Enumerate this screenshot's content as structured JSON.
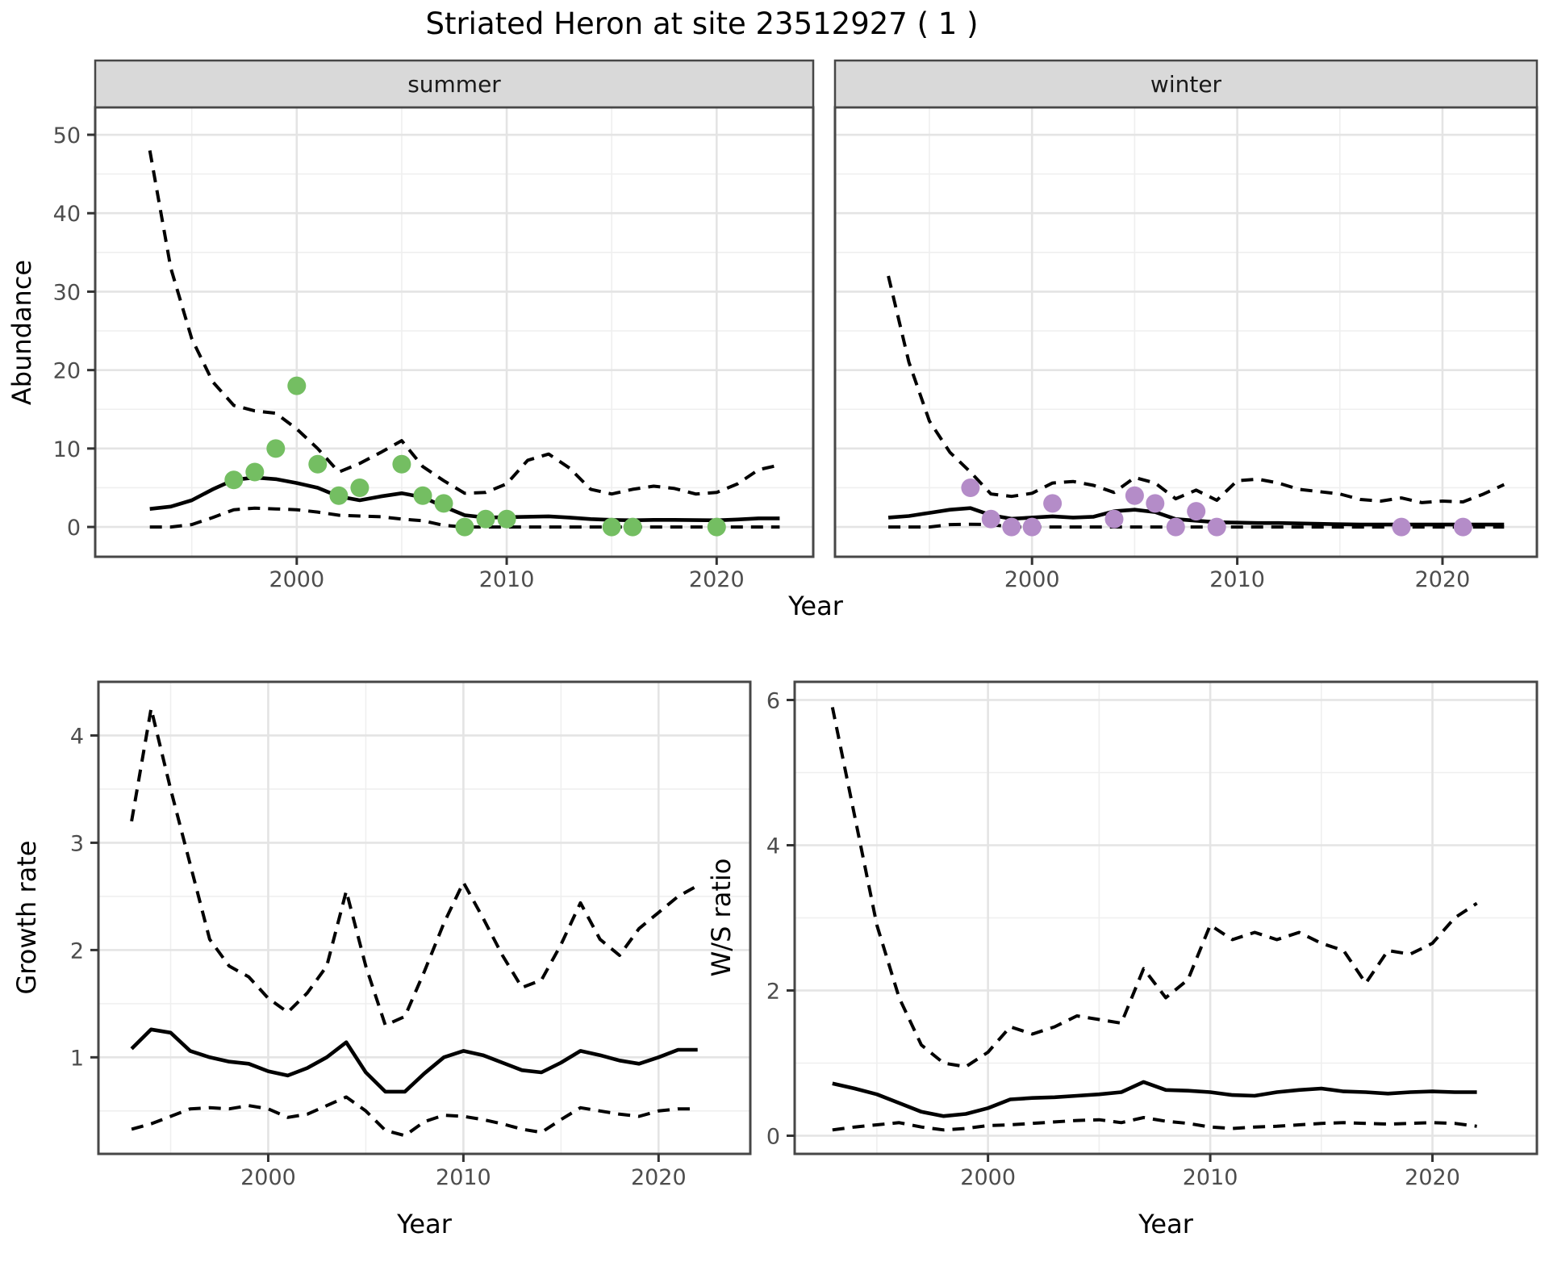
{
  "title": "Striated Heron at site 23512927 ( 1 )",
  "axis_labels": {
    "top_x": "Year",
    "top_y": "Abundance",
    "bottom_left_x": "Year",
    "bottom_left_y": "Growth rate",
    "bottom_right_x": "Year",
    "bottom_right_y": "W/S ratio"
  },
  "colors": {
    "summer_points": "#74BE62",
    "winter_points": "#B48CC8",
    "line": "#000000",
    "grid_major": "#E4E4E4",
    "grid_minor": "#EFEFEF",
    "panel_border": "#474747",
    "strip_bg": "#D9D9D9",
    "tick_text": "#4d4d4d",
    "panel_bg": "#FFFFFF"
  },
  "chart_data": [
    {
      "id": "summer",
      "type": "line",
      "facet_label": "summer",
      "xlabel": "Year",
      "ylabel": "Abundance",
      "x_ticks": [
        2000,
        2010,
        2020
      ],
      "y_ticks": [
        0,
        10,
        20,
        30,
        40,
        50
      ],
      "xlim": [
        1990.4,
        2024.6
      ],
      "ylim": [
        -3.8,
        53.5
      ],
      "years": [
        1993,
        1994,
        1995,
        1996,
        1997,
        1998,
        1999,
        2000,
        2001,
        2002,
        2003,
        2004,
        2005,
        2006,
        2007,
        2008,
        2009,
        2010,
        2011,
        2012,
        2013,
        2014,
        2015,
        2016,
        2017,
        2018,
        2019,
        2020,
        2021,
        2022,
        2023
      ],
      "series": [
        {
          "name": "median",
          "style": "solid",
          "values": [
            2.3,
            2.6,
            3.4,
            4.8,
            6.0,
            6.3,
            6.1,
            5.6,
            5.0,
            3.9,
            3.4,
            3.9,
            4.3,
            3.8,
            2.6,
            1.5,
            1.2,
            1.25,
            1.3,
            1.35,
            1.2,
            1.0,
            0.9,
            0.85,
            0.9,
            0.9,
            0.87,
            0.85,
            0.95,
            1.1,
            1.1
          ]
        },
        {
          "name": "upper 95% CI",
          "style": "dashed",
          "values": [
            48,
            33,
            24,
            18.5,
            15.5,
            14.8,
            14.5,
            12.5,
            10,
            7,
            8.1,
            9.5,
            11,
            7.7,
            5.9,
            4.3,
            4.4,
            5.5,
            8.5,
            9.3,
            7.5,
            4.8,
            4.2,
            4.8,
            5.2,
            4.9,
            4.2,
            4.4,
            5.5,
            7.3,
            7.9
          ]
        },
        {
          "name": "lower 95% CI",
          "style": "dashed",
          "values": [
            0,
            0,
            0.3,
            1.2,
            2.2,
            2.4,
            2.3,
            2.2,
            1.9,
            1.5,
            1.4,
            1.3,
            1.0,
            0.8,
            0.2,
            0,
            0,
            0,
            0,
            0,
            0,
            0,
            0,
            0,
            0,
            0,
            0,
            0,
            0,
            0,
            0
          ]
        }
      ],
      "observations": [
        [
          1997,
          6
        ],
        [
          1998,
          7
        ],
        [
          1999,
          10
        ],
        [
          2000,
          18
        ],
        [
          2001,
          8
        ],
        [
          2002,
          4
        ],
        [
          2003,
          5
        ],
        [
          2005,
          8
        ],
        [
          2006,
          4
        ],
        [
          2007,
          3
        ],
        [
          2008,
          0
        ],
        [
          2009,
          1
        ],
        [
          2010,
          1
        ],
        [
          2015,
          0
        ],
        [
          2016,
          0
        ],
        [
          2020,
          0
        ]
      ],
      "point_color": "#74BE62"
    },
    {
      "id": "winter",
      "type": "line",
      "facet_label": "winter",
      "xlabel": "Year",
      "ylabel": "Abundance",
      "x_ticks": [
        2000,
        2010,
        2020
      ],
      "y_ticks": [
        0,
        10,
        20,
        30,
        40,
        50
      ],
      "xlim": [
        1990.4,
        2024.6
      ],
      "ylim": [
        -3.8,
        53.5
      ],
      "years": [
        1993,
        1994,
        1995,
        1996,
        1997,
        1998,
        1999,
        2000,
        2001,
        2002,
        2003,
        2004,
        2005,
        2006,
        2007,
        2008,
        2009,
        2010,
        2011,
        2012,
        2013,
        2014,
        2015,
        2016,
        2017,
        2018,
        2019,
        2020,
        2021,
        2022,
        2023
      ],
      "series": [
        {
          "name": "median",
          "style": "solid",
          "values": [
            1.2,
            1.4,
            1.8,
            2.2,
            2.4,
            1.5,
            1.05,
            1.2,
            1.35,
            1.2,
            1.3,
            2.0,
            2.2,
            1.9,
            1.0,
            0.8,
            0.6,
            0.55,
            0.5,
            0.5,
            0.45,
            0.4,
            0.35,
            0.3,
            0.3,
            0.3,
            0.3,
            0.3,
            0.3,
            0.3,
            0.3
          ]
        },
        {
          "name": "upper 95% CI",
          "style": "dashed",
          "values": [
            32,
            21,
            13.5,
            9.5,
            7,
            4.2,
            3.9,
            4.3,
            5.6,
            5.8,
            5.3,
            4.4,
            6.3,
            5.6,
            3.6,
            4.7,
            3.4,
            5.9,
            6.1,
            5.6,
            4.8,
            4.5,
            4.2,
            3.5,
            3.3,
            3.7,
            3.1,
            3.3,
            3.2,
            4.2,
            5.4
          ]
        },
        {
          "name": "lower 95% CI",
          "style": "dashed",
          "values": [
            0,
            0,
            0,
            0.3,
            0.35,
            0.3,
            0,
            0,
            0,
            0,
            0,
            0,
            0,
            0,
            0,
            0,
            0,
            0,
            0,
            0,
            0,
            0,
            0,
            0,
            0,
            0,
            0,
            0,
            0,
            0,
            0
          ]
        }
      ],
      "observations": [
        [
          1997,
          5
        ],
        [
          1998,
          1
        ],
        [
          1999,
          0
        ],
        [
          2000,
          0
        ],
        [
          2001,
          3
        ],
        [
          2004,
          1
        ],
        [
          2005,
          4
        ],
        [
          2006,
          3
        ],
        [
          2007,
          0
        ],
        [
          2008,
          2
        ],
        [
          2009,
          0
        ],
        [
          2018,
          0
        ],
        [
          2021,
          0
        ]
      ],
      "point_color": "#B48CC8"
    },
    {
      "id": "growth",
      "type": "line",
      "facet_label": "",
      "xlabel": "Year",
      "ylabel": "Growth rate",
      "x_ticks": [
        2000,
        2010,
        2020
      ],
      "y_ticks": [
        1,
        2,
        3,
        4
      ],
      "xlim": [
        1991.3,
        2024.7
      ],
      "ylim": [
        0.1,
        4.5
      ],
      "years": [
        1993,
        1994,
        1995,
        1996,
        1997,
        1998,
        1999,
        2000,
        2001,
        2002,
        2003,
        2004,
        2005,
        2006,
        2007,
        2008,
        2009,
        2010,
        2011,
        2012,
        2013,
        2014,
        2015,
        2016,
        2017,
        2018,
        2019,
        2020,
        2021,
        2022
      ],
      "series": [
        {
          "name": "median",
          "style": "solid",
          "values": [
            1.08,
            1.26,
            1.23,
            1.06,
            1.0,
            0.96,
            0.94,
            0.87,
            0.83,
            0.9,
            1.0,
            1.14,
            0.86,
            0.68,
            0.68,
            0.85,
            1.0,
            1.06,
            1.02,
            0.95,
            0.88,
            0.86,
            0.95,
            1.06,
            1.02,
            0.97,
            0.94,
            1.0,
            1.07,
            1.07
          ]
        },
        {
          "name": "upper 95% CI",
          "style": "dashed",
          "values": [
            3.2,
            4.25,
            3.5,
            2.8,
            2.1,
            1.85,
            1.75,
            1.55,
            1.42,
            1.6,
            1.85,
            2.55,
            1.85,
            1.3,
            1.38,
            1.8,
            2.25,
            2.63,
            2.3,
            1.95,
            1.65,
            1.72,
            2.05,
            2.44,
            2.1,
            1.95,
            2.2,
            2.35,
            2.5,
            2.6
          ]
        },
        {
          "name": "lower 95% CI",
          "style": "dashed",
          "values": [
            0.33,
            0.38,
            0.45,
            0.52,
            0.53,
            0.52,
            0.55,
            0.52,
            0.44,
            0.47,
            0.55,
            0.63,
            0.5,
            0.32,
            0.27,
            0.4,
            0.46,
            0.45,
            0.42,
            0.38,
            0.33,
            0.3,
            0.42,
            0.53,
            0.5,
            0.47,
            0.45,
            0.5,
            0.52,
            0.52
          ]
        }
      ],
      "observations": [],
      "point_color": "#000000"
    },
    {
      "id": "ws_ratio",
      "type": "line",
      "facet_label": "",
      "xlabel": "Year",
      "ylabel": "W/S ratio",
      "x_ticks": [
        2000,
        2010,
        2020
      ],
      "y_ticks": [
        0,
        2,
        4,
        6
      ],
      "xlim": [
        1991.3,
        2024.7
      ],
      "ylim": [
        -0.25,
        6.25
      ],
      "years": [
        1993,
        1994,
        1995,
        1996,
        1997,
        1998,
        1999,
        2000,
        2001,
        2002,
        2003,
        2004,
        2005,
        2006,
        2007,
        2008,
        2009,
        2010,
        2011,
        2012,
        2013,
        2014,
        2015,
        2016,
        2017,
        2018,
        2019,
        2020,
        2021,
        2022
      ],
      "series": [
        {
          "name": "median",
          "style": "solid",
          "values": [
            0.72,
            0.65,
            0.57,
            0.45,
            0.33,
            0.27,
            0.3,
            0.38,
            0.5,
            0.52,
            0.53,
            0.55,
            0.57,
            0.6,
            0.74,
            0.63,
            0.62,
            0.6,
            0.56,
            0.55,
            0.6,
            0.63,
            0.65,
            0.61,
            0.6,
            0.58,
            0.6,
            0.61,
            0.6,
            0.6
          ]
        },
        {
          "name": "upper 95% CI",
          "style": "dashed",
          "values": [
            5.9,
            4.4,
            2.9,
            1.9,
            1.25,
            1.0,
            0.95,
            1.15,
            1.5,
            1.4,
            1.5,
            1.65,
            1.6,
            1.55,
            2.3,
            1.9,
            2.15,
            2.9,
            2.7,
            2.8,
            2.7,
            2.8,
            2.65,
            2.55,
            2.1,
            2.55,
            2.5,
            2.65,
            3.0,
            3.2
          ]
        },
        {
          "name": "lower 95% CI",
          "style": "dashed",
          "values": [
            0.08,
            0.12,
            0.15,
            0.18,
            0.12,
            0.08,
            0.1,
            0.14,
            0.15,
            0.17,
            0.19,
            0.21,
            0.22,
            0.18,
            0.25,
            0.2,
            0.17,
            0.12,
            0.1,
            0.12,
            0.13,
            0.15,
            0.17,
            0.18,
            0.17,
            0.16,
            0.17,
            0.18,
            0.17,
            0.13
          ]
        }
      ],
      "observations": [],
      "point_color": "#000000"
    }
  ]
}
